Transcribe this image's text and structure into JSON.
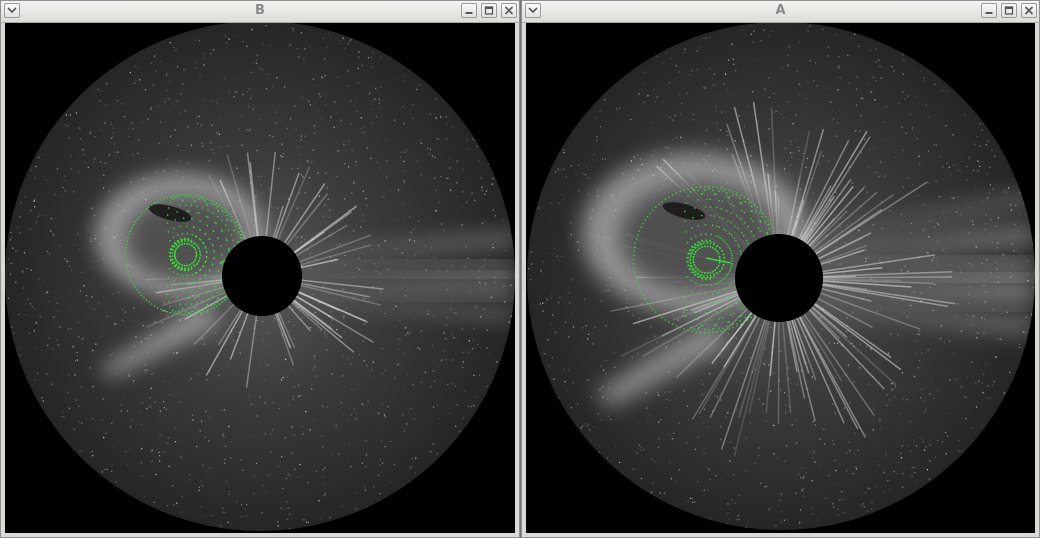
{
  "windows": [
    {
      "id": "B",
      "title": "B",
      "buttons": [
        "menu-icon",
        "minimize-icon",
        "maximize-icon",
        "close-icon"
      ]
    },
    {
      "id": "A",
      "title": "A",
      "buttons": [
        "menu-icon",
        "minimize-icon",
        "maximize-icon",
        "close-icon"
      ]
    }
  ],
  "colors": {
    "overlay": "#2ee82e",
    "background": "#000000",
    "field": "#3a3a3a"
  }
}
